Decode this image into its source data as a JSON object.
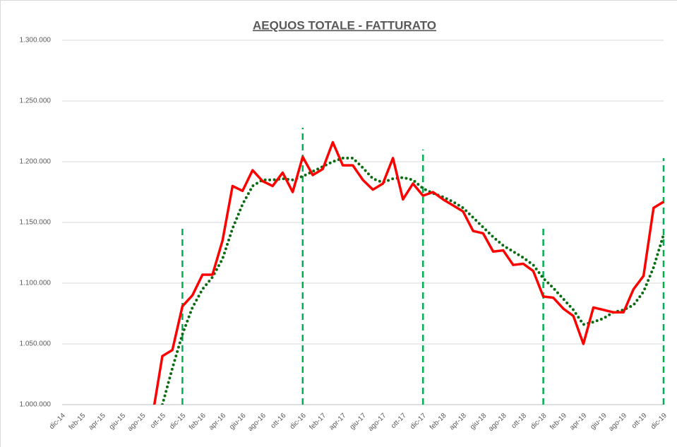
{
  "chart_data": {
    "type": "line",
    "title": "AEQUOS TOTALE - FATTURATO",
    "categories": [
      "dic-14",
      null,
      "feb-15",
      null,
      "apr-15",
      null,
      "giu-15",
      null,
      "ago-15",
      null,
      "ott-15",
      null,
      "dic-15",
      null,
      "feb-16",
      null,
      "apr-16",
      null,
      "giu-16",
      null,
      "ago-16",
      null,
      "ott-16",
      null,
      "dic-16",
      null,
      "feb-17",
      null,
      "apr-17",
      null,
      "giu-17",
      null,
      "ago-17",
      null,
      "ott-17",
      null,
      "dic-17",
      null,
      "feb-18",
      null,
      "apr-18",
      null,
      "giu-18",
      null,
      "ago-18",
      null,
      "ott-18",
      null,
      "dic-18",
      null,
      "feb-19",
      null,
      "apr-19",
      null,
      "giu-19",
      null,
      "ago-19",
      null,
      "ott-19",
      null,
      "dic-19"
    ],
    "series": [
      {
        "color": "#ff0000",
        "style": "solid",
        "values": [
          null,
          null,
          null,
          null,
          null,
          null,
          null,
          null,
          null,
          990000,
          1040000,
          1045000,
          1081000,
          1090000,
          1107000,
          1107000,
          1135000,
          1180000,
          1176000,
          1193000,
          1184000,
          1180000,
          1191000,
          1175000,
          1204000,
          1189000,
          1194000,
          1216000,
          1197000,
          1197000,
          1185000,
          1177000,
          1182000,
          1203000,
          1169000,
          1182000,
          1172000,
          1175000,
          1169000,
          1164000,
          1159000,
          1143000,
          1141000,
          1126000,
          1127000,
          1115000,
          1116000,
          1110000,
          1089000,
          1088000,
          1079000,
          1073000,
          1050000,
          1080000,
          1078000,
          1076000,
          1076000,
          1095000,
          1106000,
          1162000,
          1167000
        ]
      },
      {
        "color": "#0a6b12",
        "style": "dotted",
        "values": [
          null,
          null,
          null,
          null,
          null,
          null,
          null,
          null,
          null,
          null,
          1000000,
          1030000,
          1058000,
          1080000,
          1095000,
          1105000,
          1120000,
          1145000,
          1165000,
          1180000,
          1185000,
          1185000,
          1186000,
          1185000,
          1188000,
          1192000,
          1196000,
          1200000,
          1203000,
          1203000,
          1195000,
          1186000,
          1183000,
          1186000,
          1187000,
          1185000,
          1178000,
          1174000,
          1171000,
          1167000,
          1162000,
          1154000,
          1146000,
          1138000,
          1131000,
          1126000,
          1121000,
          1115000,
          1104000,
          1096000,
          1087000,
          1078000,
          1066000,
          1068000,
          1071000,
          1076000,
          1078000,
          1082000,
          1093000,
          1113000,
          1140000
        ]
      },
      {
        "color": "#00b050",
        "style": "droplines",
        "values": [
          null,
          null,
          null,
          null,
          null,
          null,
          null,
          null,
          null,
          null,
          null,
          null,
          1147000,
          null,
          null,
          null,
          null,
          null,
          null,
          null,
          null,
          null,
          null,
          null,
          1228000,
          null,
          null,
          null,
          null,
          null,
          null,
          null,
          null,
          null,
          null,
          null,
          1210000,
          null,
          null,
          null,
          null,
          null,
          null,
          null,
          null,
          null,
          null,
          null,
          1148000,
          null,
          null,
          null,
          null,
          null,
          null,
          null,
          null,
          null,
          null,
          null,
          1203000
        ]
      }
    ],
    "ylim": [
      1000000,
      1300000
    ],
    "yticks": [
      {
        "value": 1000000,
        "label": "1.000.000"
      },
      {
        "value": 1050000,
        "label": "1.050.000"
      },
      {
        "value": 1100000,
        "label": "1.100.000"
      },
      {
        "value": 1150000,
        "label": "1.150.000"
      },
      {
        "value": 1200000,
        "label": "1.200.000"
      },
      {
        "value": 1250000,
        "label": "1.250.000"
      },
      {
        "value": 1300000,
        "label": "1.300.000"
      }
    ],
    "grid": true
  }
}
